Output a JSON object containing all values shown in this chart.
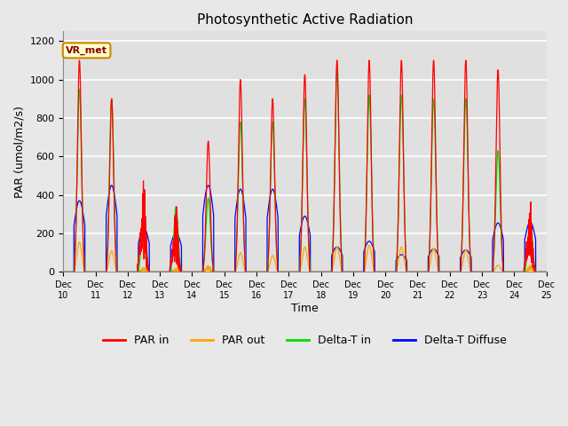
{
  "title": "Photosynthetic Active Radiation",
  "ylabel": "PAR (umol/m2/s)",
  "xlabel": "Time",
  "annotation": "VR_met",
  "ylim": [
    0,
    1250
  ],
  "yticks": [
    0,
    200,
    400,
    600,
    800,
    1000,
    1200
  ],
  "xtick_labels": [
    "Dec 10",
    "Dec 11",
    "Dec 12",
    "Dec 13",
    "Dec 14",
    "Dec 15",
    "Dec 16",
    "Dec 17",
    "Dec 18",
    "Dec 19",
    "Dec 20",
    "Dec 21",
    "Dec 22",
    "Dec 23",
    "Dec 24",
    "Dec 25"
  ],
  "colors": {
    "PAR_in": "#ff0000",
    "PAR_out": "#ffa500",
    "Delta_T_in": "#00dd00",
    "Delta_T_diffuse": "#0000ff"
  },
  "legend_labels": [
    "PAR in",
    "PAR out",
    "Delta-T in",
    "Delta-T Diffuse"
  ],
  "fig_bg_color": "#e8e8e8",
  "plot_bg_color": "#e0e0e0",
  "annotation_bg": "#ffffcc",
  "annotation_border": "#cc8800",
  "n_days": 15,
  "pts_per_day": 288,
  "par_in_peaks": [
    1100,
    900,
    500,
    350,
    680,
    1000,
    900,
    1025,
    1100,
    1100,
    1100,
    1100,
    1100,
    1050,
    390
  ],
  "par_out_peaks": [
    155,
    110,
    25,
    20,
    35,
    100,
    85,
    130,
    130,
    140,
    130,
    125,
    115,
    35,
    35
  ],
  "delta_t_peaks": [
    950,
    900,
    350,
    340,
    385,
    780,
    780,
    900,
    1050,
    920,
    920,
    900,
    900,
    630,
    290
  ],
  "delta_d_peaks": [
    370,
    450,
    230,
    205,
    450,
    430,
    430,
    290,
    130,
    160,
    90,
    120,
    115,
    255,
    260
  ],
  "cloud_factor": [
    0.1,
    0.3,
    0.7,
    0.8,
    0.5,
    0.15,
    0.2,
    0.3,
    0.1,
    0.15,
    0.1,
    0.1,
    0.1,
    0.2,
    0.9
  ]
}
